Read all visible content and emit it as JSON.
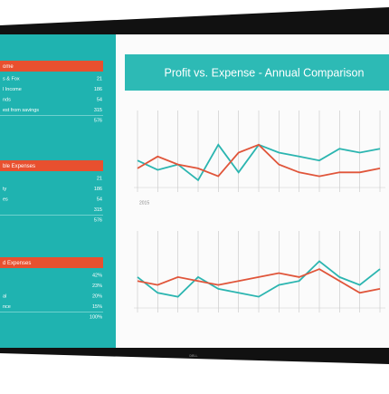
{
  "bezel_logo": "DELL",
  "dashboard_title": "Profit vs. Expense - Annual Comparison",
  "sidebar": {
    "sections": [
      {
        "title": "ome",
        "rows": [
          {
            "label": "s & Fox",
            "value": "21"
          },
          {
            "label": "l Income",
            "value": "186"
          },
          {
            "label": "nds",
            "value": "54"
          },
          {
            "label": "est from savings",
            "value": "315"
          },
          {
            "value": "576"
          }
        ]
      },
      {
        "title": "ble Expenses",
        "rows": [
          {
            "value": "21"
          },
          {
            "label": "ty",
            "value": "186"
          },
          {
            "label": "es",
            "value": "54"
          },
          {
            "value": "315"
          },
          {
            "value": "576"
          }
        ]
      },
      {
        "title": "d Expenses",
        "rows": [
          {
            "value": "42%"
          },
          {
            "value": "23%"
          },
          {
            "label": "al",
            "value": "20%"
          },
          {
            "label": "nce",
            "value": "15%"
          },
          {
            "value": "100%"
          }
        ]
      }
    ]
  },
  "chart_data": [
    {
      "type": "line",
      "annotation": "2015",
      "ylim": [
        0,
        100
      ],
      "grid": true,
      "series": [
        {
          "color": "#2bb5b0",
          "values": [
            40,
            28,
            35,
            15,
            60,
            25,
            60,
            50,
            45,
            40,
            55,
            50,
            55
          ]
        },
        {
          "color": "#e0553a",
          "values": [
            30,
            45,
            35,
            30,
            20,
            50,
            60,
            35,
            25,
            20,
            25,
            25,
            30
          ]
        }
      ]
    },
    {
      "type": "line",
      "ylim": [
        0,
        100
      ],
      "grid": true,
      "series": [
        {
          "color": "#2bb5b0",
          "values": [
            45,
            25,
            20,
            45,
            30,
            25,
            20,
            35,
            40,
            65,
            45,
            35,
            55
          ]
        },
        {
          "color": "#e0553a",
          "values": [
            40,
            35,
            45,
            40,
            35,
            40,
            45,
            50,
            45,
            55,
            40,
            25,
            30
          ]
        }
      ]
    }
  ]
}
